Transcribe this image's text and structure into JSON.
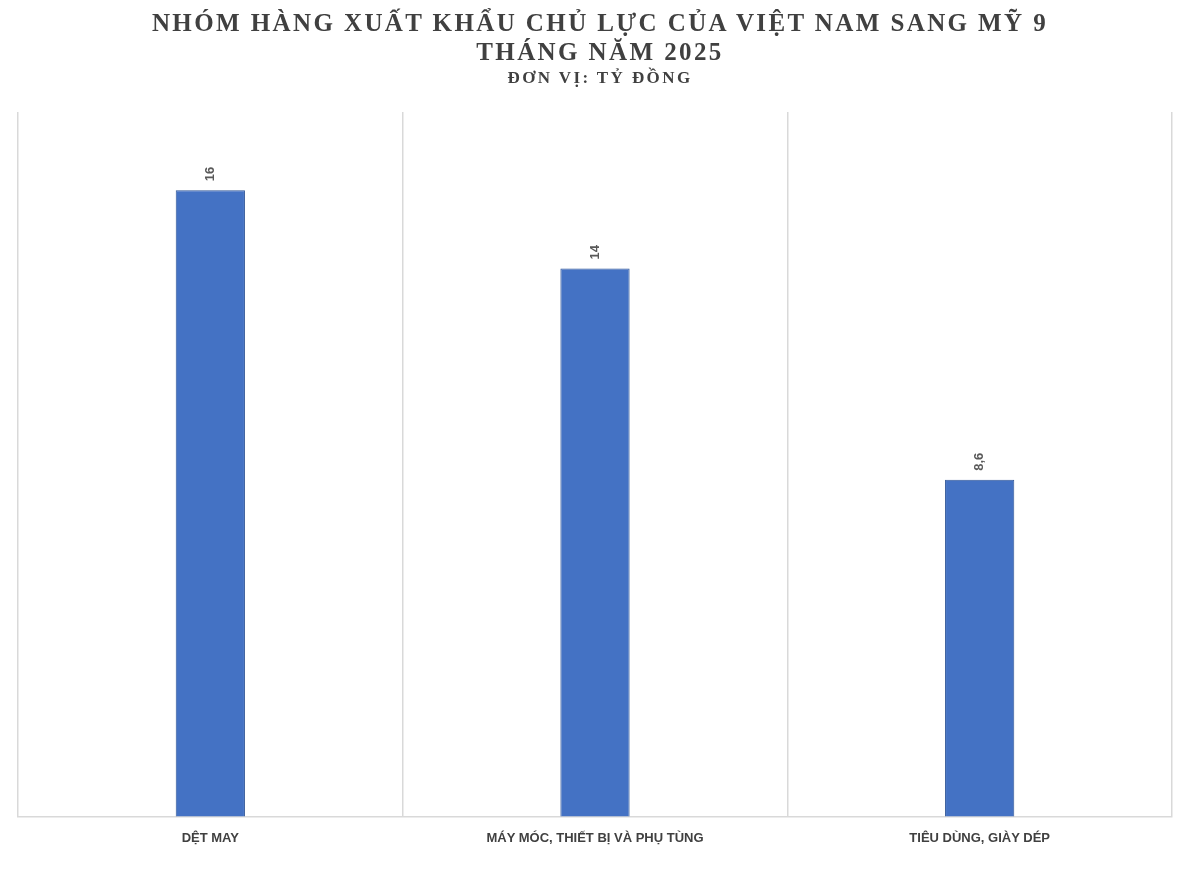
{
  "chart_data": {
    "type": "bar",
    "title": "NHÓM HÀNG XUẤT KHẨU CHỦ LỰC CỦA VIỆT NAM SANG MỸ 9 THÁNG NĂM 2025",
    "subtitle": "ĐƠN VỊ: TỶ ĐỒNG",
    "categories": [
      "DỆT MAY",
      "MÁY MÓC, THIẾT BỊ VÀ PHỤ TÙNG",
      "TIÊU DÙNG, GIÀY DÉP"
    ],
    "values": [
      16,
      14,
      8.6
    ],
    "value_labels": [
      "16",
      "14",
      "8,6"
    ],
    "color": "#4472c4",
    "grid": "x"
  }
}
